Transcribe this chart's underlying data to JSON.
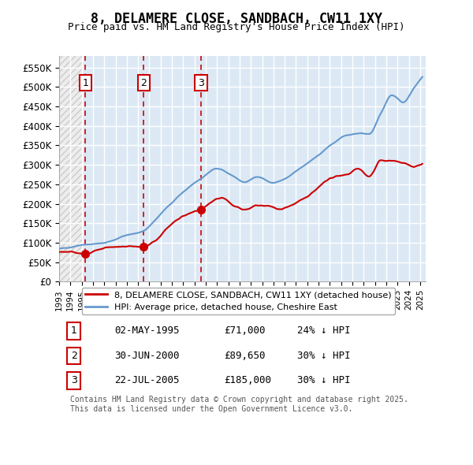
{
  "title": "8, DELAMERE CLOSE, SANDBACH, CW11 1XY",
  "subtitle": "Price paid vs. HM Land Registry's House Price Index (HPI)",
  "transactions": [
    {
      "num": 1,
      "date": "1995-05-02",
      "price": 71000,
      "label": "02-MAY-1995",
      "pct": "24% ↓ HPI"
    },
    {
      "num": 2,
      "date": "2000-06-30",
      "price": 89650,
      "label": "30-JUN-2000",
      "pct": "30% ↓ HPI"
    },
    {
      "num": 3,
      "date": "2005-07-22",
      "price": 185000,
      "label": "22-JUL-2005",
      "pct": "30% ↓ HPI"
    }
  ],
  "legend_house": "8, DELAMERE CLOSE, SANDBACH, CW11 1XY (detached house)",
  "legend_hpi": "HPI: Average price, detached house, Cheshire East",
  "footnote": "Contains HM Land Registry data © Crown copyright and database right 2025.\nThis data is licensed under the Open Government Licence v3.0.",
  "ylim": [
    0,
    580000
  ],
  "yticks": [
    0,
    50000,
    100000,
    150000,
    200000,
    250000,
    300000,
    350000,
    400000,
    450000,
    500000,
    550000
  ],
  "ytick_labels": [
    "£0",
    "£50K",
    "£100K",
    "£150K",
    "£200K",
    "£250K",
    "£300K",
    "£350K",
    "£400K",
    "£450K",
    "£500K",
    "£550K"
  ],
  "hatch_color": "#cccccc",
  "bg_color": "#dce9f5",
  "grid_color": "#ffffff",
  "house_color": "#cc0000",
  "hpi_color": "#6699cc",
  "vline_color": "#cc0000"
}
